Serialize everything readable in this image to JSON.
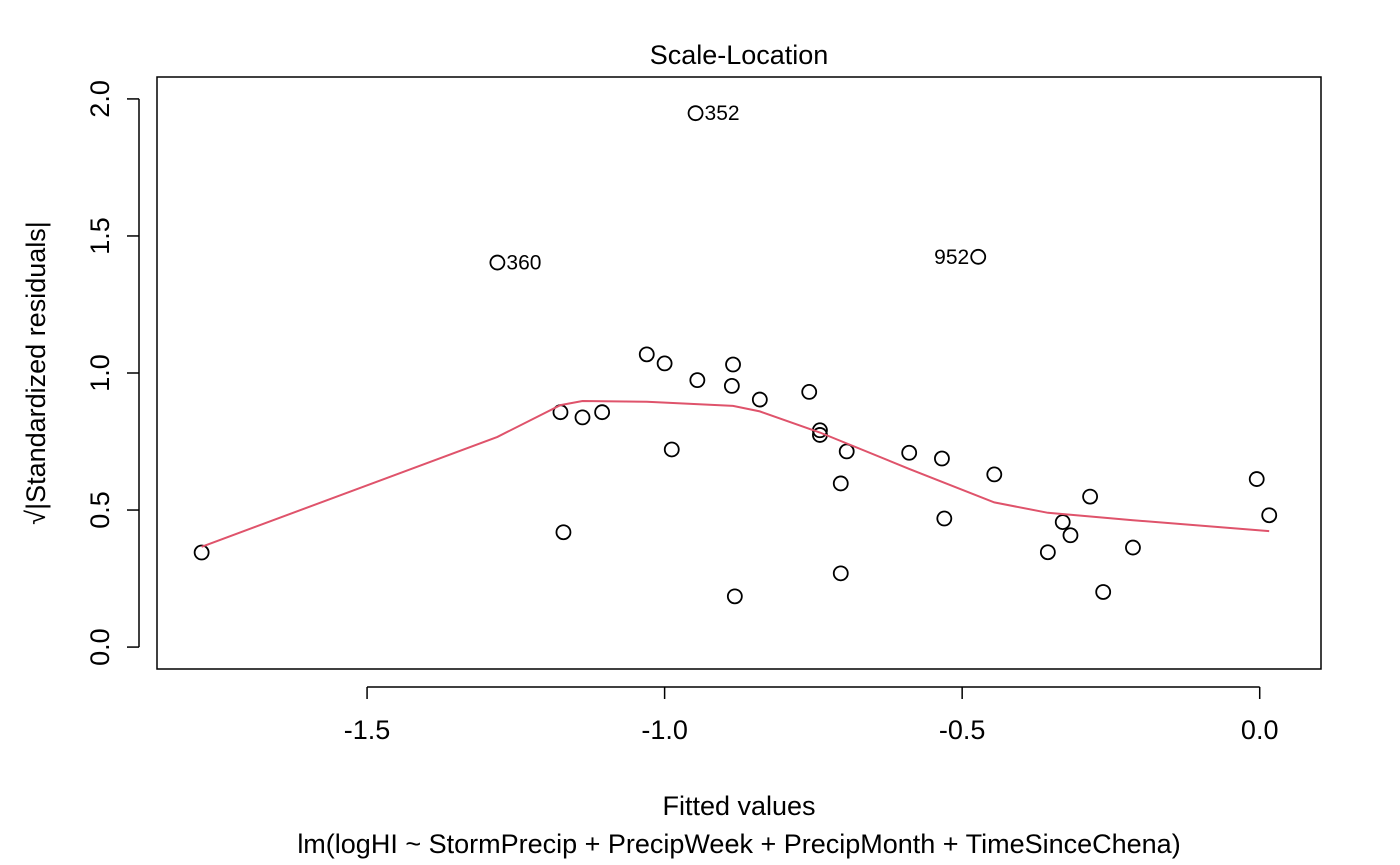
{
  "chart_data": {
    "type": "scatter",
    "title": "Scale-Location",
    "xlabel": "Fitted values",
    "ylabel": "√|Standardized residuals|",
    "subtitle": "lm(logHI ~ StormPrecip + PrecipWeek + PrecipMonth + TimeSinceChena)",
    "xlim": [
      -1.853,
      0.103
    ],
    "ylim": [
      -0.08,
      2.08
    ],
    "xticks": [
      -1.5,
      -1.0,
      -0.5,
      0.0
    ],
    "xtick_labels": [
      "-1.5",
      "-1.0",
      "-0.5",
      "0.0"
    ],
    "yticks": [
      0.0,
      0.5,
      1.0,
      1.5,
      2.0
    ],
    "ytick_labels": [
      "0.0",
      "0.5",
      "1.0",
      "1.5",
      "2.0"
    ],
    "grid": false,
    "series": [
      {
        "mark": "open-circle",
        "points": [
          {
            "x": -1.778,
            "y": 0.345
          },
          {
            "x": -1.281,
            "y": 1.403,
            "label": "360",
            "label_side": "right"
          },
          {
            "x": -1.175,
            "y": 0.857
          },
          {
            "x": -1.17,
            "y": 0.419
          },
          {
            "x": -1.138,
            "y": 0.838
          },
          {
            "x": -1.105,
            "y": 0.857
          },
          {
            "x": -1.03,
            "y": 1.068
          },
          {
            "x": -1.0,
            "y": 1.035
          },
          {
            "x": -0.988,
            "y": 0.721
          },
          {
            "x": -0.948,
            "y": 1.948,
            "label": "352",
            "label_side": "right"
          },
          {
            "x": -0.945,
            "y": 0.974
          },
          {
            "x": -0.885,
            "y": 1.031
          },
          {
            "x": -0.887,
            "y": 0.953
          },
          {
            "x": -0.882,
            "y": 0.185
          },
          {
            "x": -0.84,
            "y": 0.903
          },
          {
            "x": -0.757,
            "y": 0.931
          },
          {
            "x": -0.739,
            "y": 0.791
          },
          {
            "x": -0.739,
            "y": 0.774
          },
          {
            "x": -0.704,
            "y": 0.597
          },
          {
            "x": -0.704,
            "y": 0.269
          },
          {
            "x": -0.694,
            "y": 0.714
          },
          {
            "x": -0.589,
            "y": 0.709
          },
          {
            "x": -0.534,
            "y": 0.688
          },
          {
            "x": -0.53,
            "y": 0.469
          },
          {
            "x": -0.473,
            "y": 1.424,
            "label": "952",
            "label_side": "left"
          },
          {
            "x": -0.446,
            "y": 0.63
          },
          {
            "x": -0.356,
            "y": 0.346
          },
          {
            "x": -0.331,
            "y": 0.456
          },
          {
            "x": -0.318,
            "y": 0.408
          },
          {
            "x": -0.285,
            "y": 0.549
          },
          {
            "x": -0.263,
            "y": 0.201
          },
          {
            "x": -0.213,
            "y": 0.363
          },
          {
            "x": -0.005,
            "y": 0.613
          },
          {
            "x": 0.016,
            "y": 0.481
          }
        ]
      },
      {
        "mark": "line",
        "color": "#DF536B",
        "points": [
          {
            "x": -1.778,
            "y": 0.366
          },
          {
            "x": -1.281,
            "y": 0.767
          },
          {
            "x": -1.175,
            "y": 0.883
          },
          {
            "x": -1.138,
            "y": 0.898
          },
          {
            "x": -1.03,
            "y": 0.895
          },
          {
            "x": -0.885,
            "y": 0.88
          },
          {
            "x": -0.84,
            "y": 0.86
          },
          {
            "x": -0.739,
            "y": 0.783
          },
          {
            "x": -0.589,
            "y": 0.65
          },
          {
            "x": -0.446,
            "y": 0.528
          },
          {
            "x": -0.356,
            "y": 0.49
          },
          {
            "x": -0.213,
            "y": 0.463
          },
          {
            "x": 0.016,
            "y": 0.423
          }
        ]
      }
    ]
  }
}
